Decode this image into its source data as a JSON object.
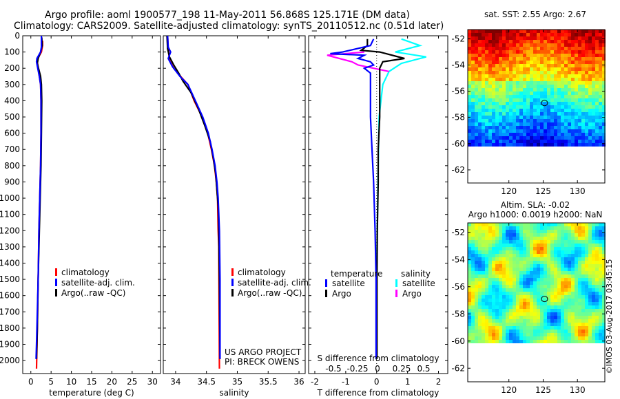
{
  "title": {
    "line1": "Argo profile: aoml 1900577_198 11-May-2011 56.868S 125.171E (DM data)",
    "line2": "Climatology: CARS2009. Satellite-adjusted climatology: synTS_20110512.nc (0.51d later)"
  },
  "depth_ticks": [
    0,
    100,
    200,
    300,
    400,
    500,
    600,
    700,
    800,
    900,
    1000,
    1100,
    1200,
    1300,
    1400,
    1500,
    1600,
    1700,
    1800,
    1900,
    2000
  ],
  "colors": {
    "climatology": "#ff0000",
    "satellite": "#0000ff",
    "argo": "#000000",
    "sat_salinity": "#00ffff",
    "argo_salinity": "#ff00ff"
  },
  "chart_data": [
    {
      "type": "line",
      "panel": "temperature",
      "xlabel": "temperature (deg C)",
      "xlim": [
        -2,
        32
      ],
      "ylim": [
        2080,
        0
      ],
      "xticks": [
        "0",
        "5",
        "10",
        "15",
        "20",
        "25",
        "30"
      ],
      "xtick_values": [
        0,
        5,
        10,
        15,
        20,
        25,
        30
      ],
      "legend": [
        "climatology",
        "satellite-adj. clim.",
        "Argo(..raw -QC)"
      ],
      "series": [
        {
          "name": "climatology",
          "points": [
            [
              2.9,
              30
            ],
            [
              2.9,
              60
            ],
            [
              2.6,
              100
            ],
            [
              1.7,
              140
            ],
            [
              1.6,
              160
            ],
            [
              1.8,
              200
            ],
            [
              2.1,
              250
            ],
            [
              2.4,
              300
            ],
            [
              2.5,
              400
            ],
            [
              2.5,
              600
            ],
            [
              2.4,
              800
            ],
            [
              2.2,
              1000
            ],
            [
              2.0,
              1200
            ],
            [
              1.8,
              1500
            ],
            [
              1.6,
              1800
            ],
            [
              1.4,
              2050
            ]
          ]
        },
        {
          "name": "satellite-adj. clim.",
          "points": [
            [
              2.6,
              0
            ],
            [
              2.6,
              70
            ],
            [
              2.4,
              100
            ],
            [
              1.5,
              140
            ],
            [
              1.4,
              160
            ],
            [
              1.7,
              200
            ],
            [
              2.1,
              250
            ],
            [
              2.4,
              300
            ],
            [
              2.5,
              400
            ],
            [
              2.5,
              600
            ],
            [
              2.4,
              800
            ],
            [
              2.2,
              1000
            ],
            [
              2.0,
              1200
            ],
            [
              1.8,
              1500
            ],
            [
              1.5,
              1800
            ],
            [
              1.3,
              1990
            ]
          ]
        },
        {
          "name": "Argo(..raw -QC)",
          "points": [
            [
              2.7,
              10
            ],
            [
              2.8,
              60
            ],
            [
              2.4,
              100
            ],
            [
              1.8,
              140
            ],
            [
              1.6,
              170
            ],
            [
              1.9,
              200
            ],
            [
              2.4,
              250
            ],
            [
              2.6,
              300
            ],
            [
              2.7,
              400
            ],
            [
              2.6,
              600
            ],
            [
              2.5,
              800
            ],
            [
              2.3,
              1000
            ],
            [
              2.1,
              1200
            ],
            [
              1.8,
              1500
            ],
            [
              1.6,
              1800
            ],
            [
              1.4,
              1990
            ]
          ]
        }
      ]
    },
    {
      "type": "line",
      "panel": "salinity",
      "xlabel": "salinity",
      "xlim": [
        33.8,
        36.1
      ],
      "ylim": [
        2080,
        0
      ],
      "xticks": [
        "34",
        "34.5",
        "35",
        "35.5",
        "36"
      ],
      "xtick_values": [
        34,
        34.5,
        35,
        35.5,
        36
      ],
      "legend": [
        "climatology",
        "satellite-adj. clim.",
        "Argo(..raw -QC)"
      ],
      "annotation": [
        "US ARGO PROJECT",
        "PI: BRECK OWENS"
      ],
      "series": [
        {
          "name": "climatology",
          "points": [
            [
              33.87,
              0
            ],
            [
              33.88,
              80
            ],
            [
              33.9,
              150
            ],
            [
              33.97,
              200
            ],
            [
              34.08,
              250
            ],
            [
              34.2,
              300
            ],
            [
              34.3,
              400
            ],
            [
              34.43,
              500
            ],
            [
              34.52,
              600
            ],
            [
              34.58,
              700
            ],
            [
              34.63,
              800
            ],
            [
              34.66,
              900
            ],
            [
              34.68,
              1000
            ],
            [
              34.69,
              1200
            ],
            [
              34.7,
              1300
            ],
            [
              34.71,
              2050
            ]
          ]
        },
        {
          "name": "satellite-adj. clim.",
          "points": [
            [
              33.87,
              0
            ],
            [
              33.88,
              70
            ],
            [
              33.92,
              100
            ],
            [
              33.88,
              140
            ],
            [
              33.95,
              190
            ],
            [
              34.07,
              250
            ],
            [
              34.2,
              300
            ],
            [
              34.32,
              400
            ],
            [
              34.44,
              500
            ],
            [
              34.53,
              600
            ],
            [
              34.59,
              700
            ],
            [
              34.64,
              800
            ],
            [
              34.67,
              900
            ],
            [
              34.69,
              1000
            ],
            [
              34.71,
              1200
            ],
            [
              34.72,
              1500
            ],
            [
              34.72,
              1990
            ]
          ]
        },
        {
          "name": "Argo(..raw -QC)",
          "points": [
            [
              33.86,
              0
            ],
            [
              33.87,
              80
            ],
            [
              33.9,
              130
            ],
            [
              33.97,
              180
            ],
            [
              34.05,
              230
            ],
            [
              34.12,
              280
            ],
            [
              34.25,
              350
            ],
            [
              34.37,
              450
            ],
            [
              34.47,
              550
            ],
            [
              34.56,
              650
            ],
            [
              34.61,
              750
            ],
            [
              34.65,
              850
            ],
            [
              34.67,
              950
            ],
            [
              34.69,
              1050
            ],
            [
              34.7,
              1200
            ],
            [
              34.71,
              1500
            ],
            [
              34.72,
              1990
            ]
          ]
        }
      ]
    },
    {
      "type": "line",
      "panel": "difference",
      "xlabel": "T difference from climatology",
      "xlabel_top": "S difference from climatology",
      "xlim": [
        -2.2,
        2.3
      ],
      "ylim": [
        2080,
        0
      ],
      "xticks": [
        "-2",
        "-1",
        "0",
        "1",
        "2"
      ],
      "xtick_values": [
        -2,
        -1,
        0,
        1,
        2
      ],
      "s_ticks": [
        "-0.5",
        "-0.25",
        "0",
        "0.25",
        "0.5"
      ],
      "legend": {
        "temperature_header": "temperature",
        "salinity_header": "salinity",
        "t_sat": "satellite",
        "t_argo": "Argo",
        "s_sat": "satellite",
        "s_argo": "Argo"
      },
      "series": [
        {
          "name": "satellite",
          "group": "temperature",
          "points": [
            [
              -0.1,
              20
            ],
            [
              -0.2,
              60
            ],
            [
              -1.1,
              100
            ],
            [
              -1.5,
              110
            ],
            [
              -0.4,
              120
            ],
            [
              -0.6,
              140
            ],
            [
              -0.2,
              160
            ],
            [
              -0.1,
              180
            ],
            [
              -0.4,
              200
            ],
            [
              -0.2,
              230
            ],
            [
              -0.2,
              300
            ],
            [
              -0.2,
              500
            ],
            [
              -0.15,
              700
            ],
            [
              -0.1,
              900
            ],
            [
              -0.05,
              1200
            ],
            [
              -0.02,
              1500
            ],
            [
              -0.02,
              1990
            ]
          ]
        },
        {
          "name": "Argo",
          "group": "temperature",
          "points": [
            [
              -0.3,
              20
            ],
            [
              -0.3,
              60
            ],
            [
              -0.5,
              90
            ],
            [
              0.1,
              100
            ],
            [
              0.9,
              140
            ],
            [
              0.2,
              160
            ],
            [
              0.1,
              200
            ],
            [
              0.1,
              300
            ],
            [
              0.1,
              500
            ],
            [
              0.05,
              700
            ],
            [
              0.05,
              900
            ],
            [
              0.02,
              1200
            ],
            [
              0.01,
              1500
            ],
            [
              0.01,
              1990
            ]
          ]
        },
        {
          "name": "satellite",
          "group": "salinity",
          "points": [
            [
              0.2,
              20
            ],
            [
              0.35,
              60
            ],
            [
              0.15,
              100
            ],
            [
              0.4,
              130
            ],
            [
              0.2,
              170
            ],
            [
              0.1,
              220
            ],
            [
              0.05,
              300
            ],
            [
              0.02,
              500
            ],
            [
              0.01,
              900
            ],
            [
              0.0,
              1500
            ],
            [
              0.0,
              1990
            ]
          ]
        },
        {
          "name": "Argo",
          "group": "salinity",
          "points": [
            [
              -0.1,
              100
            ],
            [
              -0.4,
              120
            ],
            [
              -0.2,
              160
            ],
            [
              -0.15,
              180
            ],
            [
              0.1,
              220
            ]
          ]
        }
      ]
    },
    {
      "type": "heatmap",
      "panel": "sst_map",
      "title": "sat. SST: 2.55 Argo: 2.67",
      "ylim": [
        -63,
        -51.3
      ],
      "xlim": [
        114,
        134
      ],
      "yticks": [
        "-52",
        "-54",
        "-56",
        "-58",
        "-60",
        "-62"
      ],
      "ytick_values": [
        -52,
        -54,
        -56,
        -58,
        -60,
        -62
      ],
      "xticks": [
        "120",
        "125",
        "130"
      ],
      "xtick_values": [
        120,
        125,
        130
      ],
      "marker": [
        125.2,
        -56.9
      ],
      "data_extent_lat": [
        -60,
        -51.3
      ]
    },
    {
      "type": "heatmap",
      "panel": "sla_map",
      "title_line1": "Altim. SLA: -0.02",
      "title_line2": "Argo h1000: 0.0019 h2000: NaN",
      "ylim": [
        -63,
        -51.3
      ],
      "xlim": [
        114,
        134
      ],
      "yticks": [
        "-52",
        "-54",
        "-56",
        "-58",
        "-60",
        "-62"
      ],
      "ytick_values": [
        -52,
        -54,
        -56,
        -58,
        -60,
        -62
      ],
      "xticks": [
        "120",
        "125",
        "130"
      ],
      "xtick_values": [
        120,
        125,
        130
      ],
      "marker": [
        125.2,
        -56.9
      ],
      "data_extent_lat": [
        -60,
        -51.3
      ]
    }
  ],
  "watermark": "©IMOS 03-Aug-2017 03:45:15"
}
